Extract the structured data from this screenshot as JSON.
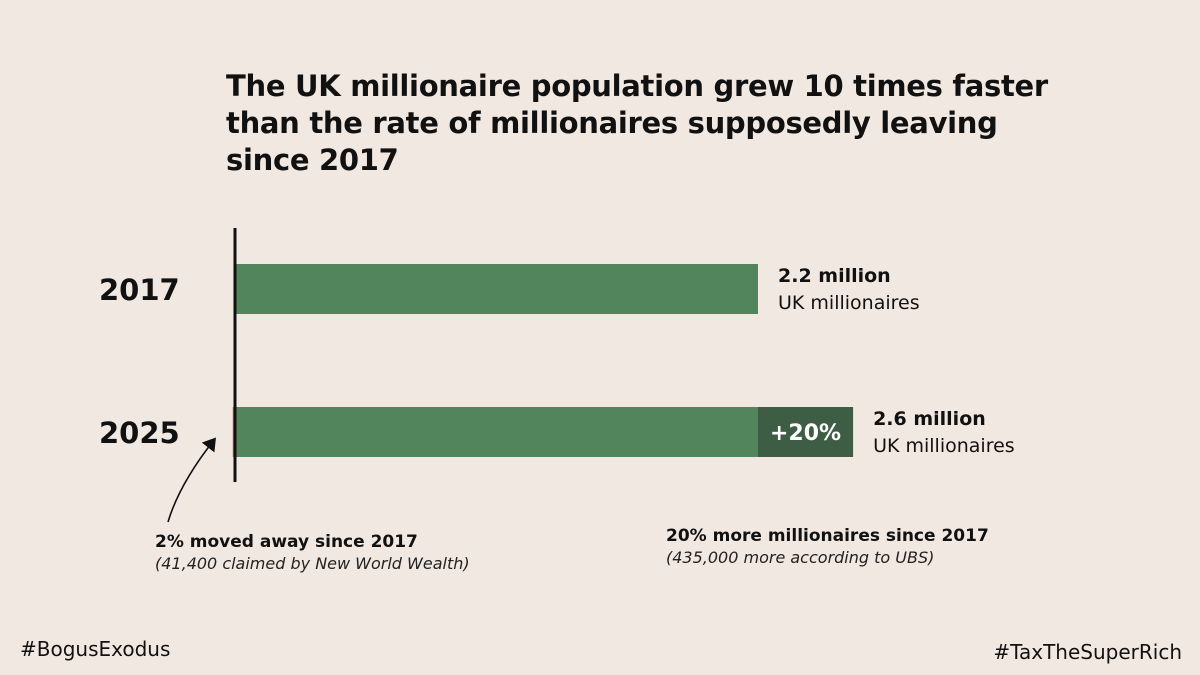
{
  "title": "The UK millionaire population grew 10 times faster than the rate of millionaires supposedly leaving since 2017",
  "colors": {
    "background": "#f1e8e2",
    "bar": "#53855c",
    "increase": "#3d5e44",
    "moved_away": "#c07a70",
    "axis": "#111111"
  },
  "chart_data": {
    "type": "bar",
    "orientation": "horizontal",
    "categories": [
      "2017",
      "2025"
    ],
    "series": [
      {
        "values": [
          2.2,
          2.6
        ],
        "value_unit": "million"
      }
    ],
    "bars": [
      {
        "category": "2017",
        "value": 2.2,
        "value_label": "2.2 million",
        "unit_label": "UK millionaires"
      },
      {
        "category": "2025",
        "value": 2.6,
        "value_label": "2.6 million",
        "unit_label": "UK millionaires",
        "increase_label": "+20%",
        "increase_pct": 20,
        "moved_away_pct": 2
      }
    ],
    "annotations": [
      {
        "id": "moved",
        "bold": "2% moved away since 2017",
        "italic": "(41,400 claimed by New World Wealth)"
      },
      {
        "id": "more",
        "bold": "20% more millionaires since 2017",
        "italic": "(435,000 more according to UBS)"
      }
    ],
    "xlim": [
      0,
      2.6
    ],
    "grid": false,
    "legend": "none"
  },
  "footer": {
    "left_tag": "#BogusExodus",
    "right_tag": "#TaxTheSuperRich"
  }
}
